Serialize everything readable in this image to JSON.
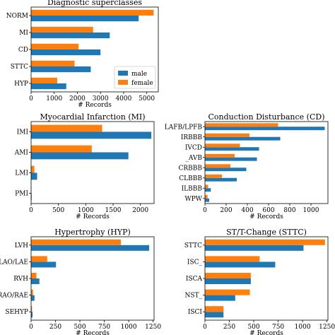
{
  "colors": {
    "male": "#1f77b4",
    "female": "#ff7f0e"
  },
  "legend": {
    "male": "male",
    "female": "female",
    "placement": "lower right"
  },
  "chart_data": [
    {
      "id": "super",
      "type": "bar",
      "orientation": "horizontal",
      "title": "Diagnostic superclasses",
      "xlabel": "# Records",
      "categories": [
        "NORM",
        "MI",
        "CD",
        "STTC",
        "HYP"
      ],
      "series": [
        {
          "name": "male",
          "values": [
            4650,
            3400,
            3000,
            2580,
            1520
          ]
        },
        {
          "name": "female",
          "values": [
            5300,
            2680,
            2050,
            1880,
            1130
          ]
        }
      ],
      "xlim": [
        0,
        5500
      ],
      "xticks": [
        "0",
        "1000",
        "2000",
        "3000",
        "4000",
        "5000"
      ],
      "xtick_values": [
        0,
        1000,
        2000,
        3000,
        4000,
        5000
      ],
      "legend": true
    },
    {
      "id": "mi",
      "type": "bar",
      "orientation": "horizontal",
      "title": "Myocardial Infarction (MI)",
      "xlabel": "# Records",
      "categories": [
        "IMI",
        "AMI",
        "LMI",
        "PMI"
      ],
      "series": [
        {
          "name": "male",
          "values": [
            2200,
            1780,
            110,
            10
          ]
        },
        {
          "name": "female",
          "values": [
            1300,
            1110,
            60,
            5
          ]
        }
      ],
      "xlim": [
        0,
        2250
      ],
      "xticks": [
        "0",
        "500",
        "1000",
        "1500",
        "2000"
      ],
      "xtick_values": [
        0,
        500,
        1000,
        1500,
        2000
      ]
    },
    {
      "id": "cd",
      "type": "bar",
      "orientation": "horizontal",
      "title": "Conduction Disturbance (CD)",
      "xlabel": "# Records",
      "categories": [
        "LAFB/LPFB",
        "IRBBB",
        "IVCD",
        "_AVB",
        "CRBBB",
        "CLBBB",
        "ILBBB",
        "WPW"
      ],
      "series": [
        {
          "name": "male",
          "values": [
            1130,
            710,
            510,
            490,
            390,
            300,
            55,
            40
          ]
        },
        {
          "name": "female",
          "values": [
            690,
            420,
            330,
            280,
            240,
            160,
            30,
            25
          ]
        }
      ],
      "xlim": [
        0,
        1160
      ],
      "xticks": [
        "0",
        "200",
        "400",
        "600",
        "800",
        "1000"
      ],
      "xtick_values": [
        0,
        200,
        400,
        600,
        800,
        1000
      ]
    },
    {
      "id": "hyp",
      "type": "bar",
      "orientation": "horizontal",
      "title": "Hypertrophy (HYP)",
      "xlabel": "# Records",
      "categories": [
        "LVH",
        "LAO/LAE",
        "RVH",
        "RAO/RAE",
        "SEHYP"
      ],
      "series": [
        {
          "name": "male",
          "values": [
            1210,
            255,
            85,
            35,
            15
          ]
        },
        {
          "name": "female",
          "values": [
            920,
            165,
            55,
            20,
            10
          ]
        }
      ],
      "xlim": [
        0,
        1260
      ],
      "xticks": [
        "0",
        "250",
        "500",
        "750",
        "1000",
        "1250"
      ],
      "xtick_values": [
        0,
        250,
        500,
        750,
        1000,
        1250
      ]
    },
    {
      "id": "sttc",
      "type": "bar",
      "orientation": "horizontal",
      "title": "ST/T-Change (STTC)",
      "xlabel": "# Records",
      "categories": [
        "STTC",
        "ISC_",
        "ISCA",
        "NST_",
        "ISCI"
      ],
      "series": [
        {
          "name": "male",
          "values": [
            1010,
            720,
            470,
            310,
            190
          ]
        },
        {
          "name": "female",
          "values": [
            1230,
            560,
            470,
            460,
            190
          ]
        }
      ],
      "xlim": [
        0,
        1260
      ],
      "xticks": [
        "0",
        "250",
        "500",
        "750",
        "1000",
        "1250"
      ],
      "xtick_values": [
        0,
        250,
        500,
        750,
        1000,
        1250
      ]
    }
  ]
}
